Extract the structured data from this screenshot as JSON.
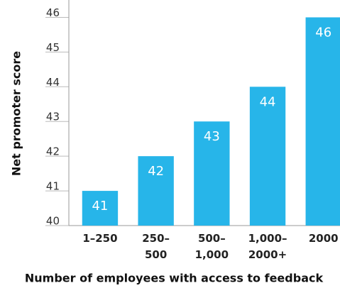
{
  "chart_data": {
    "type": "bar",
    "categories": [
      "1–250",
      "250–\n500",
      "500–\n1,000",
      "1,000–\n2000+",
      "2000"
    ],
    "values": [
      41,
      42,
      43,
      44,
      46
    ],
    "color": "#27b5e9",
    "ylim": [
      40,
      46.5
    ],
    "yticks": [
      40,
      41,
      42,
      43,
      44,
      45,
      46
    ],
    "ylabel": "Net promoter score",
    "xlabel": "Number of employees with access to feedback"
  }
}
